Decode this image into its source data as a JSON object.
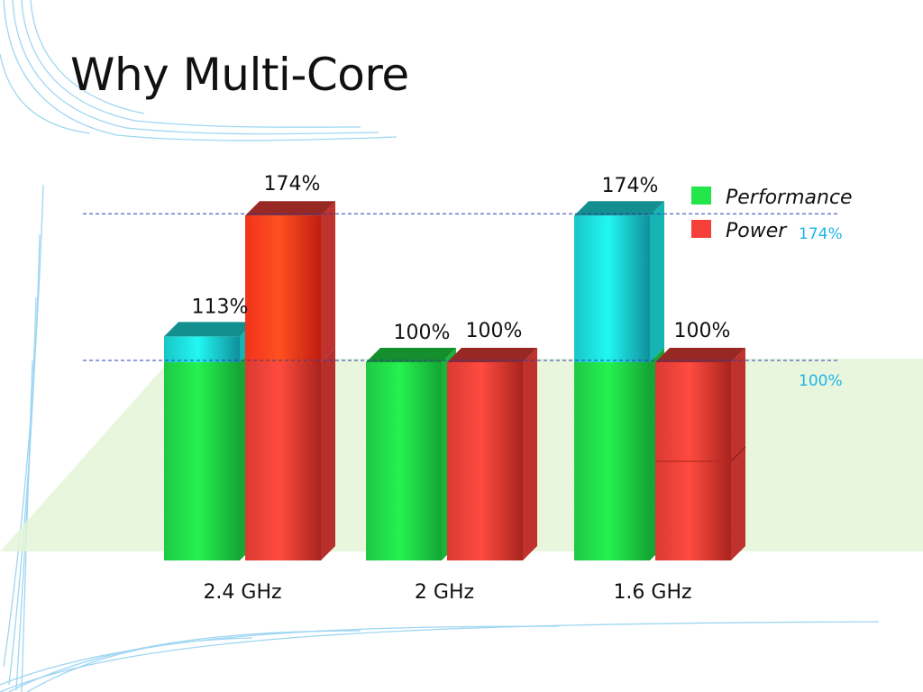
{
  "slide": {
    "title": "Why Multi-Core"
  },
  "colors": {
    "performance": "#22e64a",
    "power": "#f5403a",
    "extra_performance": "#1ee6e6",
    "reference": "#1eb4e6"
  },
  "chart_data": {
    "type": "bar",
    "categories": [
      "2.4 GHz",
      "2 GHz",
      "1.6 GHz"
    ],
    "series": [
      {
        "name": "Performance",
        "values": [
          113,
          100,
          174
        ]
      },
      {
        "name": "Power",
        "values": [
          174,
          100,
          100
        ]
      }
    ],
    "value_labels": [
      {
        "performance": "113%",
        "power": "174%"
      },
      {
        "performance": "100%",
        "power": "100%"
      },
      {
        "performance": "174%",
        "power": "100%"
      }
    ],
    "reference_lines": [
      {
        "value": 174,
        "label": "174%"
      },
      {
        "value": 100,
        "label": "100%"
      }
    ],
    "legend": {
      "position": "top-right",
      "entries": [
        "Performance",
        "Power"
      ]
    },
    "title": "",
    "xlabel": "",
    "ylabel": "",
    "ylim": [
      0,
      174
    ],
    "grid": false
  }
}
